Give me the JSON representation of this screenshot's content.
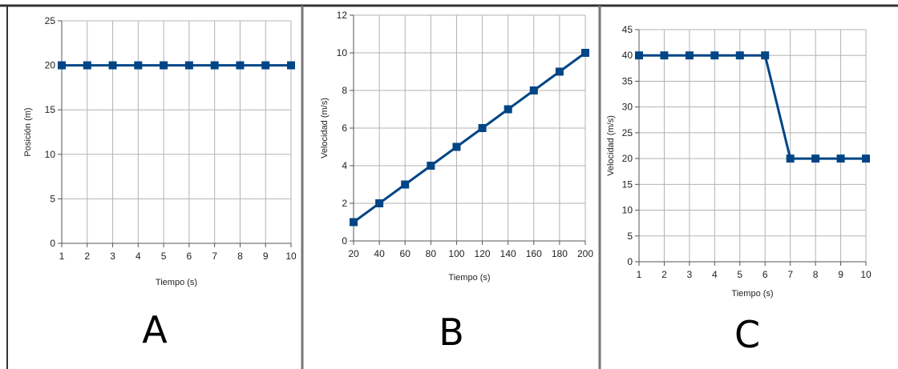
{
  "colors": {
    "series": "#004586",
    "grid": "#b3b3b3",
    "border": "#333333",
    "frame": "#777777"
  },
  "chart_data": [
    {
      "type": "line",
      "panel_label": "A",
      "xlabel": "Tiempo (s)",
      "ylabel": "Posición (m)",
      "x": [
        1,
        2,
        3,
        4,
        5,
        6,
        7,
        8,
        9,
        10
      ],
      "y": [
        20,
        20,
        20,
        20,
        20,
        20,
        20,
        20,
        20,
        20
      ],
      "xlim": [
        1,
        10
      ],
      "ylim": [
        0,
        25
      ],
      "x_ticks": [
        1,
        2,
        3,
        4,
        5,
        6,
        7,
        8,
        9,
        10
      ],
      "y_ticks": [
        0,
        5,
        10,
        15,
        20,
        25
      ],
      "grid": true,
      "marker": "square"
    },
    {
      "type": "line",
      "panel_label": "B",
      "xlabel": "Tiempo (s)",
      "ylabel": "Velocidad (m/s)",
      "x": [
        20,
        40,
        60,
        80,
        100,
        120,
        140,
        160,
        180,
        200
      ],
      "y": [
        1,
        2,
        3,
        4,
        5,
        6,
        7,
        8,
        9,
        10
      ],
      "xlim": [
        20,
        200
      ],
      "ylim": [
        0,
        12
      ],
      "x_ticks": [
        20,
        40,
        60,
        80,
        100,
        120,
        140,
        160,
        180,
        200
      ],
      "y_ticks": [
        0,
        2,
        4,
        6,
        8,
        10,
        12
      ],
      "grid": true,
      "marker": "square"
    },
    {
      "type": "line",
      "panel_label": "C",
      "xlabel": "Tiempo (s)",
      "ylabel": "Velocidad (m/s)",
      "x": [
        1,
        2,
        3,
        4,
        5,
        6,
        7,
        8,
        9,
        10
      ],
      "y": [
        40,
        40,
        40,
        40,
        40,
        40,
        20,
        20,
        20,
        20
      ],
      "xlim": [
        1,
        10
      ],
      "ylim": [
        0,
        45
      ],
      "x_ticks": [
        1,
        2,
        3,
        4,
        5,
        6,
        7,
        8,
        9,
        10
      ],
      "y_ticks": [
        0,
        5,
        10,
        15,
        20,
        25,
        30,
        35,
        40,
        45
      ],
      "grid": true,
      "marker": "square"
    }
  ]
}
